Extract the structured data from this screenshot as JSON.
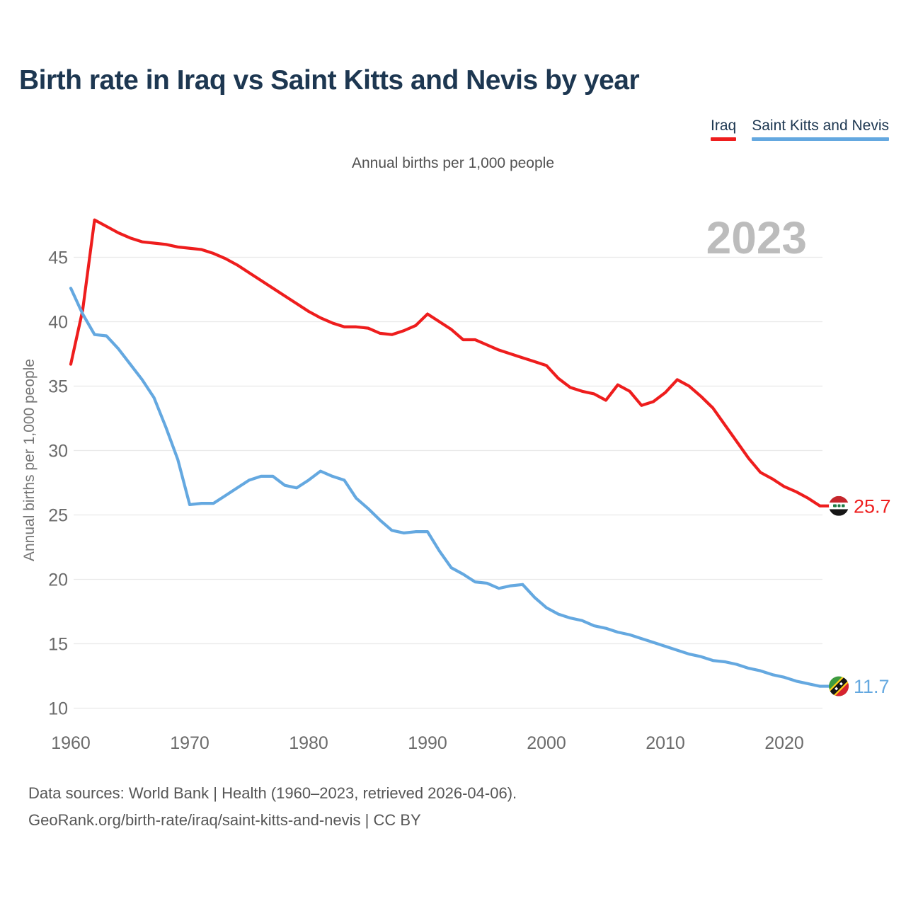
{
  "header": {
    "title": "Birth rate in Iraq vs Saint Kitts and Nevis by year",
    "subtitle": "Annual births per 1,000 people"
  },
  "legend": {
    "items": [
      {
        "label": "Iraq",
        "color": "#ee1d1d"
      },
      {
        "label": "Saint Kitts and Nevis",
        "color": "#64a8e0"
      }
    ]
  },
  "watermark": "2023",
  "y_axis_label": "Annual births per 1,000 people",
  "footer": {
    "line1": "Data sources: World Bank | Health (1960–2023, retrieved 2026-04-06).",
    "line2": "GeoRank.org/birth-rate/iraq/saint-kitts-and-nevis | CC BY"
  },
  "chart_data": {
    "type": "line",
    "title": "Birth rate in Iraq vs Saint Kitts and Nevis by year",
    "xlabel": "",
    "ylabel": "Annual births per 1,000 people",
    "legend_position": "top-right",
    "grid": "horizontal",
    "x_range": [
      1960,
      2023
    ],
    "ylim": [
      10,
      48
    ],
    "x_ticks": [
      1960,
      1970,
      1980,
      1990,
      2000,
      2010,
      2020
    ],
    "y_ticks": [
      45,
      40,
      35,
      30,
      25,
      20,
      15,
      10
    ],
    "x": [
      1960,
      1961,
      1962,
      1963,
      1964,
      1965,
      1966,
      1967,
      1968,
      1969,
      1970,
      1971,
      1972,
      1973,
      1974,
      1975,
      1976,
      1977,
      1978,
      1979,
      1980,
      1981,
      1982,
      1983,
      1984,
      1985,
      1986,
      1987,
      1988,
      1989,
      1990,
      1991,
      1992,
      1993,
      1994,
      1995,
      1996,
      1997,
      1998,
      1999,
      2000,
      2001,
      2002,
      2003,
      2004,
      2005,
      2006,
      2007,
      2008,
      2009,
      2010,
      2011,
      2012,
      2013,
      2014,
      2015,
      2016,
      2017,
      2018,
      2019,
      2020,
      2021,
      2022,
      2023
    ],
    "series": [
      {
        "name": "Iraq",
        "color": "#ee1d1d",
        "end_label": "25.7",
        "flag": "iraq",
        "values": [
          36.7,
          40.9,
          47.9,
          47.4,
          46.9,
          46.5,
          46.2,
          46.1,
          46.0,
          45.8,
          45.7,
          45.6,
          45.3,
          44.9,
          44.4,
          43.8,
          43.2,
          42.6,
          42.0,
          41.4,
          40.8,
          40.3,
          39.9,
          39.6,
          39.6,
          39.5,
          39.1,
          39.0,
          39.3,
          39.7,
          40.6,
          40.0,
          39.4,
          38.6,
          38.6,
          38.2,
          37.8,
          37.5,
          37.2,
          36.9,
          36.6,
          35.6,
          34.9,
          34.6,
          34.4,
          33.9,
          35.1,
          34.6,
          33.5,
          33.8,
          34.5,
          35.5,
          35.0,
          34.2,
          33.3,
          32.0,
          30.7,
          29.4,
          28.3,
          27.8,
          27.2,
          26.8,
          26.3,
          25.7
        ]
      },
      {
        "name": "Saint Kitts and Nevis",
        "color": "#64a8e0",
        "end_label": "11.7",
        "flag": "saint-kitts-and-nevis",
        "values": [
          42.6,
          40.6,
          39.0,
          38.9,
          37.9,
          36.7,
          35.5,
          34.1,
          31.8,
          29.3,
          25.8,
          25.9,
          25.9,
          26.5,
          27.1,
          27.7,
          28.0,
          28.0,
          27.3,
          27.1,
          27.7,
          28.4,
          28.0,
          27.7,
          26.3,
          25.5,
          24.6,
          23.8,
          23.6,
          23.7,
          23.7,
          22.2,
          20.9,
          20.4,
          19.8,
          19.7,
          19.3,
          19.5,
          19.6,
          18.6,
          17.8,
          17.3,
          17.0,
          16.8,
          16.4,
          16.2,
          15.9,
          15.7,
          15.4,
          15.1,
          14.8,
          14.5,
          14.2,
          14.0,
          13.7,
          13.6,
          13.4,
          13.1,
          12.9,
          12.6,
          12.4,
          12.1,
          11.9,
          11.7
        ]
      }
    ]
  }
}
